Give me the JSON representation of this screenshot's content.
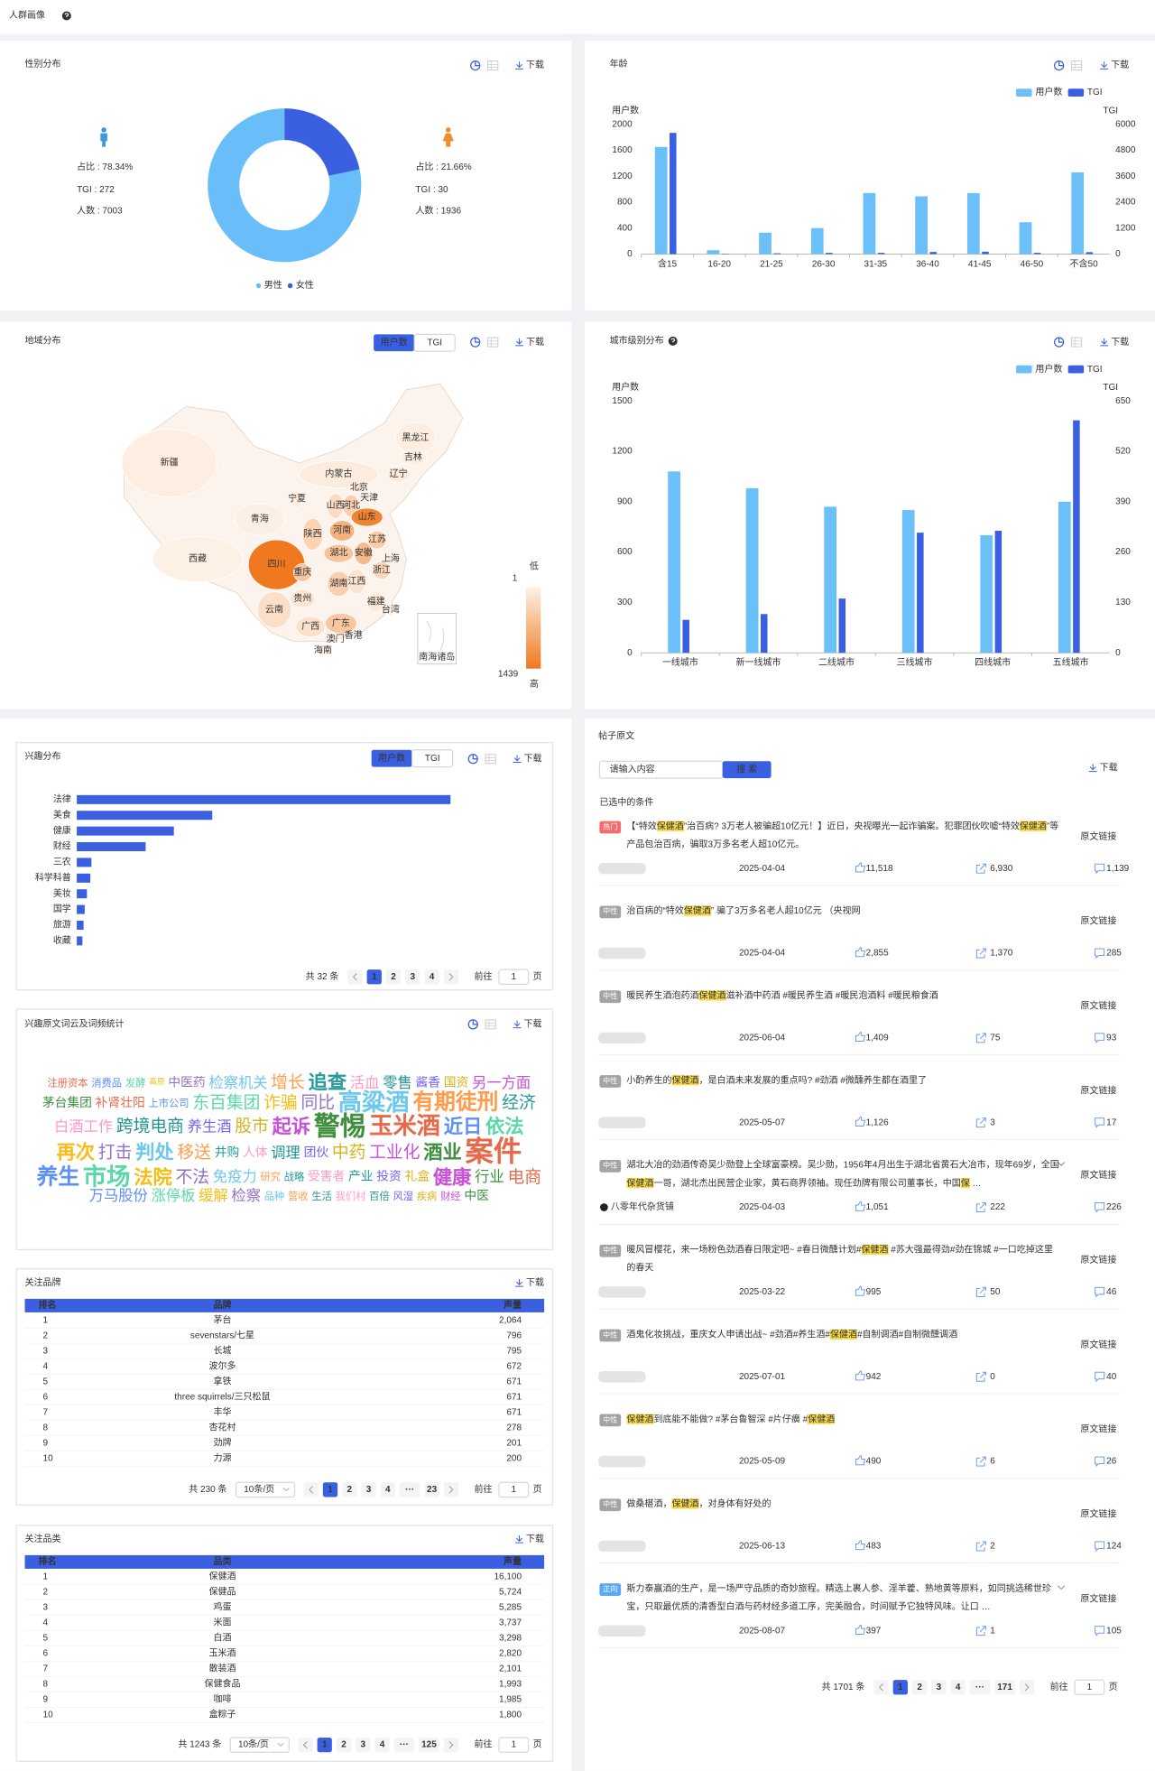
{
  "header": {
    "title": "人群画像"
  },
  "gender": {
    "title": "性别分布",
    "download": "下载",
    "chart": {
      "type": "pie",
      "categories": [
        "男性",
        "女性"
      ],
      "values": [
        78.34,
        21.66
      ],
      "value_labels": [
        "占比 : 78.34%",
        "占比 : 21.66%"
      ],
      "colors": [
        "#69bdf9",
        "#3a5fe0"
      ],
      "stats": [
        [
          "TGI : 272",
          "人数 : 7003"
        ],
        [
          "TGI : 30",
          "人数 : 1936"
        ]
      ]
    }
  },
  "age": {
    "title": "年龄",
    "download": "下载",
    "chart": {
      "type": "bar",
      "categories": [
        "含15",
        "16-20",
        "21-25",
        "26-30",
        "31-35",
        "36-40",
        "41-45",
        "46-50",
        "不含50"
      ],
      "series": [
        {
          "name": "用户数",
          "color": "#6cc0fa",
          "values": [
            1650,
            60,
            330,
            400,
            940,
            890,
            940,
            490,
            1260
          ]
        },
        {
          "name": "TGI",
          "color": "#3a5fe3",
          "axis": "y2",
          "values": [
            5600,
            20,
            40,
            60,
            60,
            100,
            110,
            60,
            90
          ]
        }
      ],
      "y_label": "用户数",
      "y2_label": "TGI",
      "ylim": [
        0,
        2000
      ],
      "yticks": [
        0,
        400,
        800,
        1200,
        1600,
        2000
      ],
      "y2lim": [
        0,
        6000
      ],
      "y2ticks": [
        0,
        1200,
        2400,
        3600,
        4800,
        6000
      ],
      "legend": "top-right"
    }
  },
  "region": {
    "title": "地域分布",
    "toggle": [
      "用户数",
      "TGI"
    ],
    "download": "下载",
    "chart": {
      "type": "map",
      "regions": [
        "新疆",
        "西藏",
        "青海",
        "内蒙古",
        "黑龙江",
        "吉林",
        "辽宁",
        "北京",
        "天津",
        "宁夏",
        "山西",
        "河北",
        "山东",
        "陕西",
        "河南",
        "江苏",
        "安徽",
        "上海",
        "湖北",
        "四川",
        "重庆",
        "浙江",
        "湖南",
        "江西",
        "贵州",
        "云南",
        "福建",
        "台湾",
        "广西",
        "广东",
        "香港",
        "澳门",
        "海南"
      ],
      "values": [
        40,
        15,
        25,
        60,
        40,
        30,
        80,
        150,
        100,
        40,
        250,
        400,
        1300,
        350,
        750,
        450,
        650,
        200,
        550,
        1439,
        500,
        300,
        400,
        150,
        150,
        220,
        100,
        5,
        200,
        500,
        20,
        10,
        20
      ],
      "range": [
        1,
        1439
      ],
      "range_labels": [
        "低",
        "高"
      ],
      "colors": [
        "#fdf1e6",
        "#f0781e"
      ],
      "inset": "南海诸岛"
    }
  },
  "city": {
    "title": "城市级别分布",
    "download": "下载",
    "chart": {
      "type": "bar",
      "categories": [
        "一线城市",
        "新一线城市",
        "二线城市",
        "三线城市",
        "四线城市",
        "五线城市"
      ],
      "series": [
        {
          "name": "用户数",
          "color": "#6cc0fa",
          "values": [
            1080,
            980,
            870,
            850,
            700,
            900
          ]
        },
        {
          "name": "TGI",
          "color": "#3a5fe3",
          "axis": "y2",
          "values": [
            85,
            100,
            140,
            310,
            315,
            600
          ]
        }
      ],
      "y_label": "用户数",
      "y2_label": "TGI",
      "ylim": [
        0,
        1500
      ],
      "yticks": [
        0,
        300,
        600,
        900,
        1200,
        1500
      ],
      "y2lim": [
        0,
        650
      ],
      "y2ticks": [
        0,
        130,
        260,
        390,
        520,
        650
      ],
      "legend": "top-right"
    }
  },
  "interest": {
    "title": "兴趣分布",
    "toggle": [
      "用户数",
      "TGI"
    ],
    "download": "下载",
    "chart": {
      "type": "hbar",
      "categories": [
        "法律",
        "美食",
        "健康",
        "财经",
        "三农",
        "科学科普",
        "美妆",
        "国学",
        "旅游",
        "收藏"
      ],
      "values": [
        331,
        120,
        86,
        61,
        13,
        12,
        9,
        7,
        6,
        5
      ],
      "color": "#3a5fe0"
    },
    "pager": {
      "total": "共 32 条",
      "pages": [
        "1",
        "2",
        "3",
        "4"
      ],
      "goto": "前往",
      "jump": "1",
      "unit": "页"
    }
  },
  "wordcloud": {
    "title": "兴趣原文词云及词频统计",
    "download": "下载",
    "words": [
      "注册资本",
      "消费品",
      "发酵",
      "高原",
      "中医药",
      "检察机关",
      "增长",
      "追查",
      "活血",
      "零售",
      "酱香",
      "国资",
      "另一方面",
      "茅台集团",
      "补肾壮阳",
      "上市公司",
      "东百集团",
      "诈骗",
      "同比",
      "高粱酒",
      "有期徒刑",
      "经济",
      "白酒工作",
      "跨境电商",
      "养生酒",
      "股市",
      "起诉",
      "警惕",
      "玉米酒",
      "近日",
      "依法",
      "再次",
      "打击",
      "判处",
      "移送",
      "井购",
      "人体",
      "调理",
      "团伙",
      "中药",
      "工业化",
      "酒业",
      "案件",
      "养生",
      "市场",
      "法院",
      "不法",
      "免疫力",
      "研究",
      "战略",
      "受害者",
      "产业",
      "投资",
      "礼盒",
      "健康",
      "行业",
      "电商",
      "万马股份",
      "涨停板",
      "缓解",
      "检察",
      "品种",
      "营收",
      "生活",
      "我们村",
      "百倍",
      "风湿",
      "疾病",
      "财经",
      "中医"
    ],
    "weights": [
      2,
      2,
      2,
      1,
      3,
      4,
      5,
      6,
      4,
      4,
      3,
      3,
      4,
      3,
      3,
      2,
      5,
      5,
      5,
      8,
      7,
      5,
      4,
      5,
      4,
      5,
      6,
      9,
      8,
      6,
      6,
      6,
      5,
      6,
      5,
      3,
      3,
      4,
      3,
      5,
      5,
      6,
      10,
      7,
      8,
      6,
      5,
      4,
      2,
      2,
      3,
      3,
      3,
      3,
      6,
      4,
      5,
      4,
      4,
      4,
      4,
      2,
      2,
      2,
      2,
      2,
      2,
      2,
      2,
      3
    ]
  },
  "brands": {
    "title": "关注品牌",
    "download": "下载",
    "columns": [
      "排名",
      "品牌",
      "声量"
    ],
    "rows": [
      [
        "1",
        "茅台",
        "2,064"
      ],
      [
        "2",
        "sevenstars/七星",
        "796"
      ],
      [
        "3",
        "长城",
        "795"
      ],
      [
        "4",
        "波尔多",
        "672"
      ],
      [
        "5",
        "拿铁",
        "671"
      ],
      [
        "6",
        "three squirrels/三只松鼠",
        "671"
      ],
      [
        "7",
        "丰华",
        "671"
      ],
      [
        "8",
        "杏花村",
        "278"
      ],
      [
        "9",
        "劲牌",
        "201"
      ],
      [
        "10",
        "力源",
        "200"
      ]
    ],
    "pager": {
      "total": "共 230 条",
      "size": "10条/页",
      "pages": [
        "1",
        "2",
        "3",
        "4",
        "···",
        "23"
      ],
      "goto": "前往",
      "jump": "1",
      "unit": "页"
    }
  },
  "categories": {
    "title": "关注品类",
    "download": "下载",
    "columns": [
      "排名",
      "品类",
      "声量"
    ],
    "rows": [
      [
        "1",
        "保健酒",
        "16,100"
      ],
      [
        "2",
        "保健品",
        "5,724"
      ],
      [
        "3",
        "鸡蛋",
        "5,285"
      ],
      [
        "4",
        "米面",
        "3,737"
      ],
      [
        "5",
        "白酒",
        "3,298"
      ],
      [
        "6",
        "玉米酒",
        "2,820"
      ],
      [
        "7",
        "散装酒",
        "2,101"
      ],
      [
        "8",
        "保健食品",
        "1,993"
      ],
      [
        "9",
        "咖啡",
        "1,985"
      ],
      [
        "10",
        "盒粽子",
        "1,800"
      ]
    ],
    "pager": {
      "total": "共 1243 条",
      "size": "10条/页",
      "pages": [
        "1",
        "2",
        "3",
        "4",
        "···",
        "125"
      ],
      "goto": "前往",
      "jump": "1",
      "unit": "页"
    }
  },
  "posts": {
    "title": "帖子原文",
    "search_placeholder": "请输入内容",
    "search_button": "搜 索",
    "download": "下载",
    "selected": "已选中的条件",
    "items": [
      {
        "tag": "热门",
        "segments": [
          "【“特效",
          {
            "highlight": "保健酒"
          },
          "”治百病? 3万老人被骗超10亿元！】近日，央视曝光一起诈骗案。犯罪团伙吹嘘“特效",
          {
            "highlight": "保健酒"
          },
          "”等产品包治百病，骗取3万多名老人超10亿元。"
        ],
        "link": "原文链接",
        "date": "2025-04-04",
        "likes": "11,518",
        "shares": "6,930",
        "comments": "1,139"
      },
      {
        "tag": "中性",
        "segments": [
          "治百病的“特效",
          {
            "highlight": "保健酒"
          },
          "” 骗了3万多名老人超10亿元 （央视网"
        ],
        "link": "原文链接",
        "date": "2025-04-04",
        "likes": "2,855",
        "shares": "1,370",
        "comments": "285"
      },
      {
        "tag": "中性",
        "segments": [
          "暖民养生酒泡药酒",
          {
            "highlight": "保健酒"
          },
          "滋补酒中药酒 #暖民养生酒 #暖民泡酒料 #暖民粮食酒"
        ],
        "link": "原文链接",
        "date": "2025-06-04",
        "likes": "1,409",
        "shares": "75",
        "comments": "93"
      },
      {
        "tag": "中性",
        "segments": [
          "小酌养生的",
          {
            "highlight": "保健酒"
          },
          "，是白酒未来发展的重点吗? #劲酒 #微醺养生都在酒里了"
        ],
        "link": "原文链接",
        "date": "2025-05-07",
        "likes": "1,126",
        "shares": "3",
        "comments": "17"
      },
      {
        "tag": "中性",
        "segments": [
          "湖北大冶的劲酒传奇吴少勋登上全球富豪榜。吴少勋，1956年4月出生于湖北省黄石大冶市，现年69岁，全国",
          {
            "highlight": "保健酒"
          },
          "一哥，湖北杰出民营企业家，黄石商界领袖。现任劲牌有限公司董事长，中国",
          {
            "highlight": "保"
          },
          " …"
        ],
        "author": "八零年代杂货铺",
        "link": "原文链接",
        "date": "2025-04-03",
        "likes": "1,051",
        "shares": "222",
        "comments": "226"
      },
      {
        "tag": "中性",
        "segments": [
          "暖风冒樱花，来一场粉色劲酒春日限定吧~ #春日微醺计划#",
          {
            "highlight": "保健酒"
          },
          " #苏大强最得劲#劲在锦城 #一口吃掉这里的春天"
        ],
        "link": "原文链接",
        "date": "2025-03-22",
        "likes": "995",
        "shares": "50",
        "comments": "46"
      },
      {
        "tag": "中性",
        "segments": [
          "酒鬼化妆挑战，重庆女人申请出战~ #劲酒#养生酒#",
          {
            "highlight": "保健酒"
          },
          "#自制调酒#自制微醺调酒"
        ],
        "link": "原文链接",
        "date": "2025-07-01",
        "likes": "942",
        "shares": "0",
        "comments": "40"
      },
      {
        "tag": "中性",
        "segments": [
          {
            "highlight": "保健酒"
          },
          "到底能不能做? #茅台鲁智深 #片仔癀 #",
          {
            "highlight": "保健酒"
          }
        ],
        "link": "原文链接",
        "date": "2025-05-09",
        "likes": "490",
        "shares": "6",
        "comments": "26"
      },
      {
        "tag": "中性",
        "segments": [
          "做桑椹酒，",
          {
            "highlight": "保健酒"
          },
          "，对身体有好处的"
        ],
        "link": "原文链接",
        "date": "2025-06-13",
        "likes": "483",
        "shares": "2",
        "comments": "124"
      },
      {
        "tag": "正向",
        "segments": [
          "斯力泰赢酒的生产，是一场严守品质的奇妙旅程。精选上裹人参、淫羊藿、熟地黄等原料，如同挑选稀世珍宝，只取最优质的清香型白酒与药材经多道工序，完美融合，时间赋予它独特风味。让口 …"
        ],
        "link": "原文链接",
        "date": "2025-08-07",
        "likes": "397",
        "shares": "1",
        "comments": "105"
      }
    ],
    "pager": {
      "total": "共 1701 条",
      "pages": [
        "1",
        "2",
        "3",
        "4",
        "···",
        "171"
      ],
      "goto": "前往",
      "jump": "1",
      "unit": "页"
    }
  }
}
